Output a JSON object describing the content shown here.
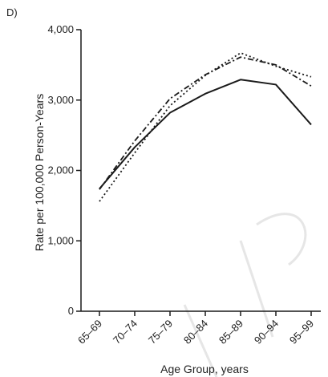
{
  "panel_label": "D)",
  "chart_data": {
    "type": "line",
    "xlabel": "Age Group, years",
    "ylabel": "Rate per 100,000 Person-Years",
    "categories": [
      "65–69",
      "70–74",
      "75–79",
      "80–84",
      "85–89",
      "90–94",
      "95–99"
    ],
    "ylim": [
      0,
      4000
    ],
    "yticks": [
      0,
      1000,
      2000,
      3000,
      4000
    ],
    "ytick_labels": [
      "0",
      "1,000",
      "2,000",
      "3,000",
      "4,000"
    ],
    "grid": false,
    "legend": "none",
    "series": [
      {
        "style": "solid",
        "values": [
          1740,
          2330,
          2820,
          3090,
          3290,
          3220,
          2650
        ]
      },
      {
        "style": "dashdot",
        "values": [
          1730,
          2420,
          3020,
          3360,
          3610,
          3500,
          3200
        ]
      },
      {
        "style": "dotted",
        "values": [
          1560,
          2250,
          2920,
          3350,
          3670,
          3480,
          3330
        ]
      }
    ],
    "colors": {
      "line": "#1a1a1a",
      "axis": "#1a1a1a"
    }
  }
}
